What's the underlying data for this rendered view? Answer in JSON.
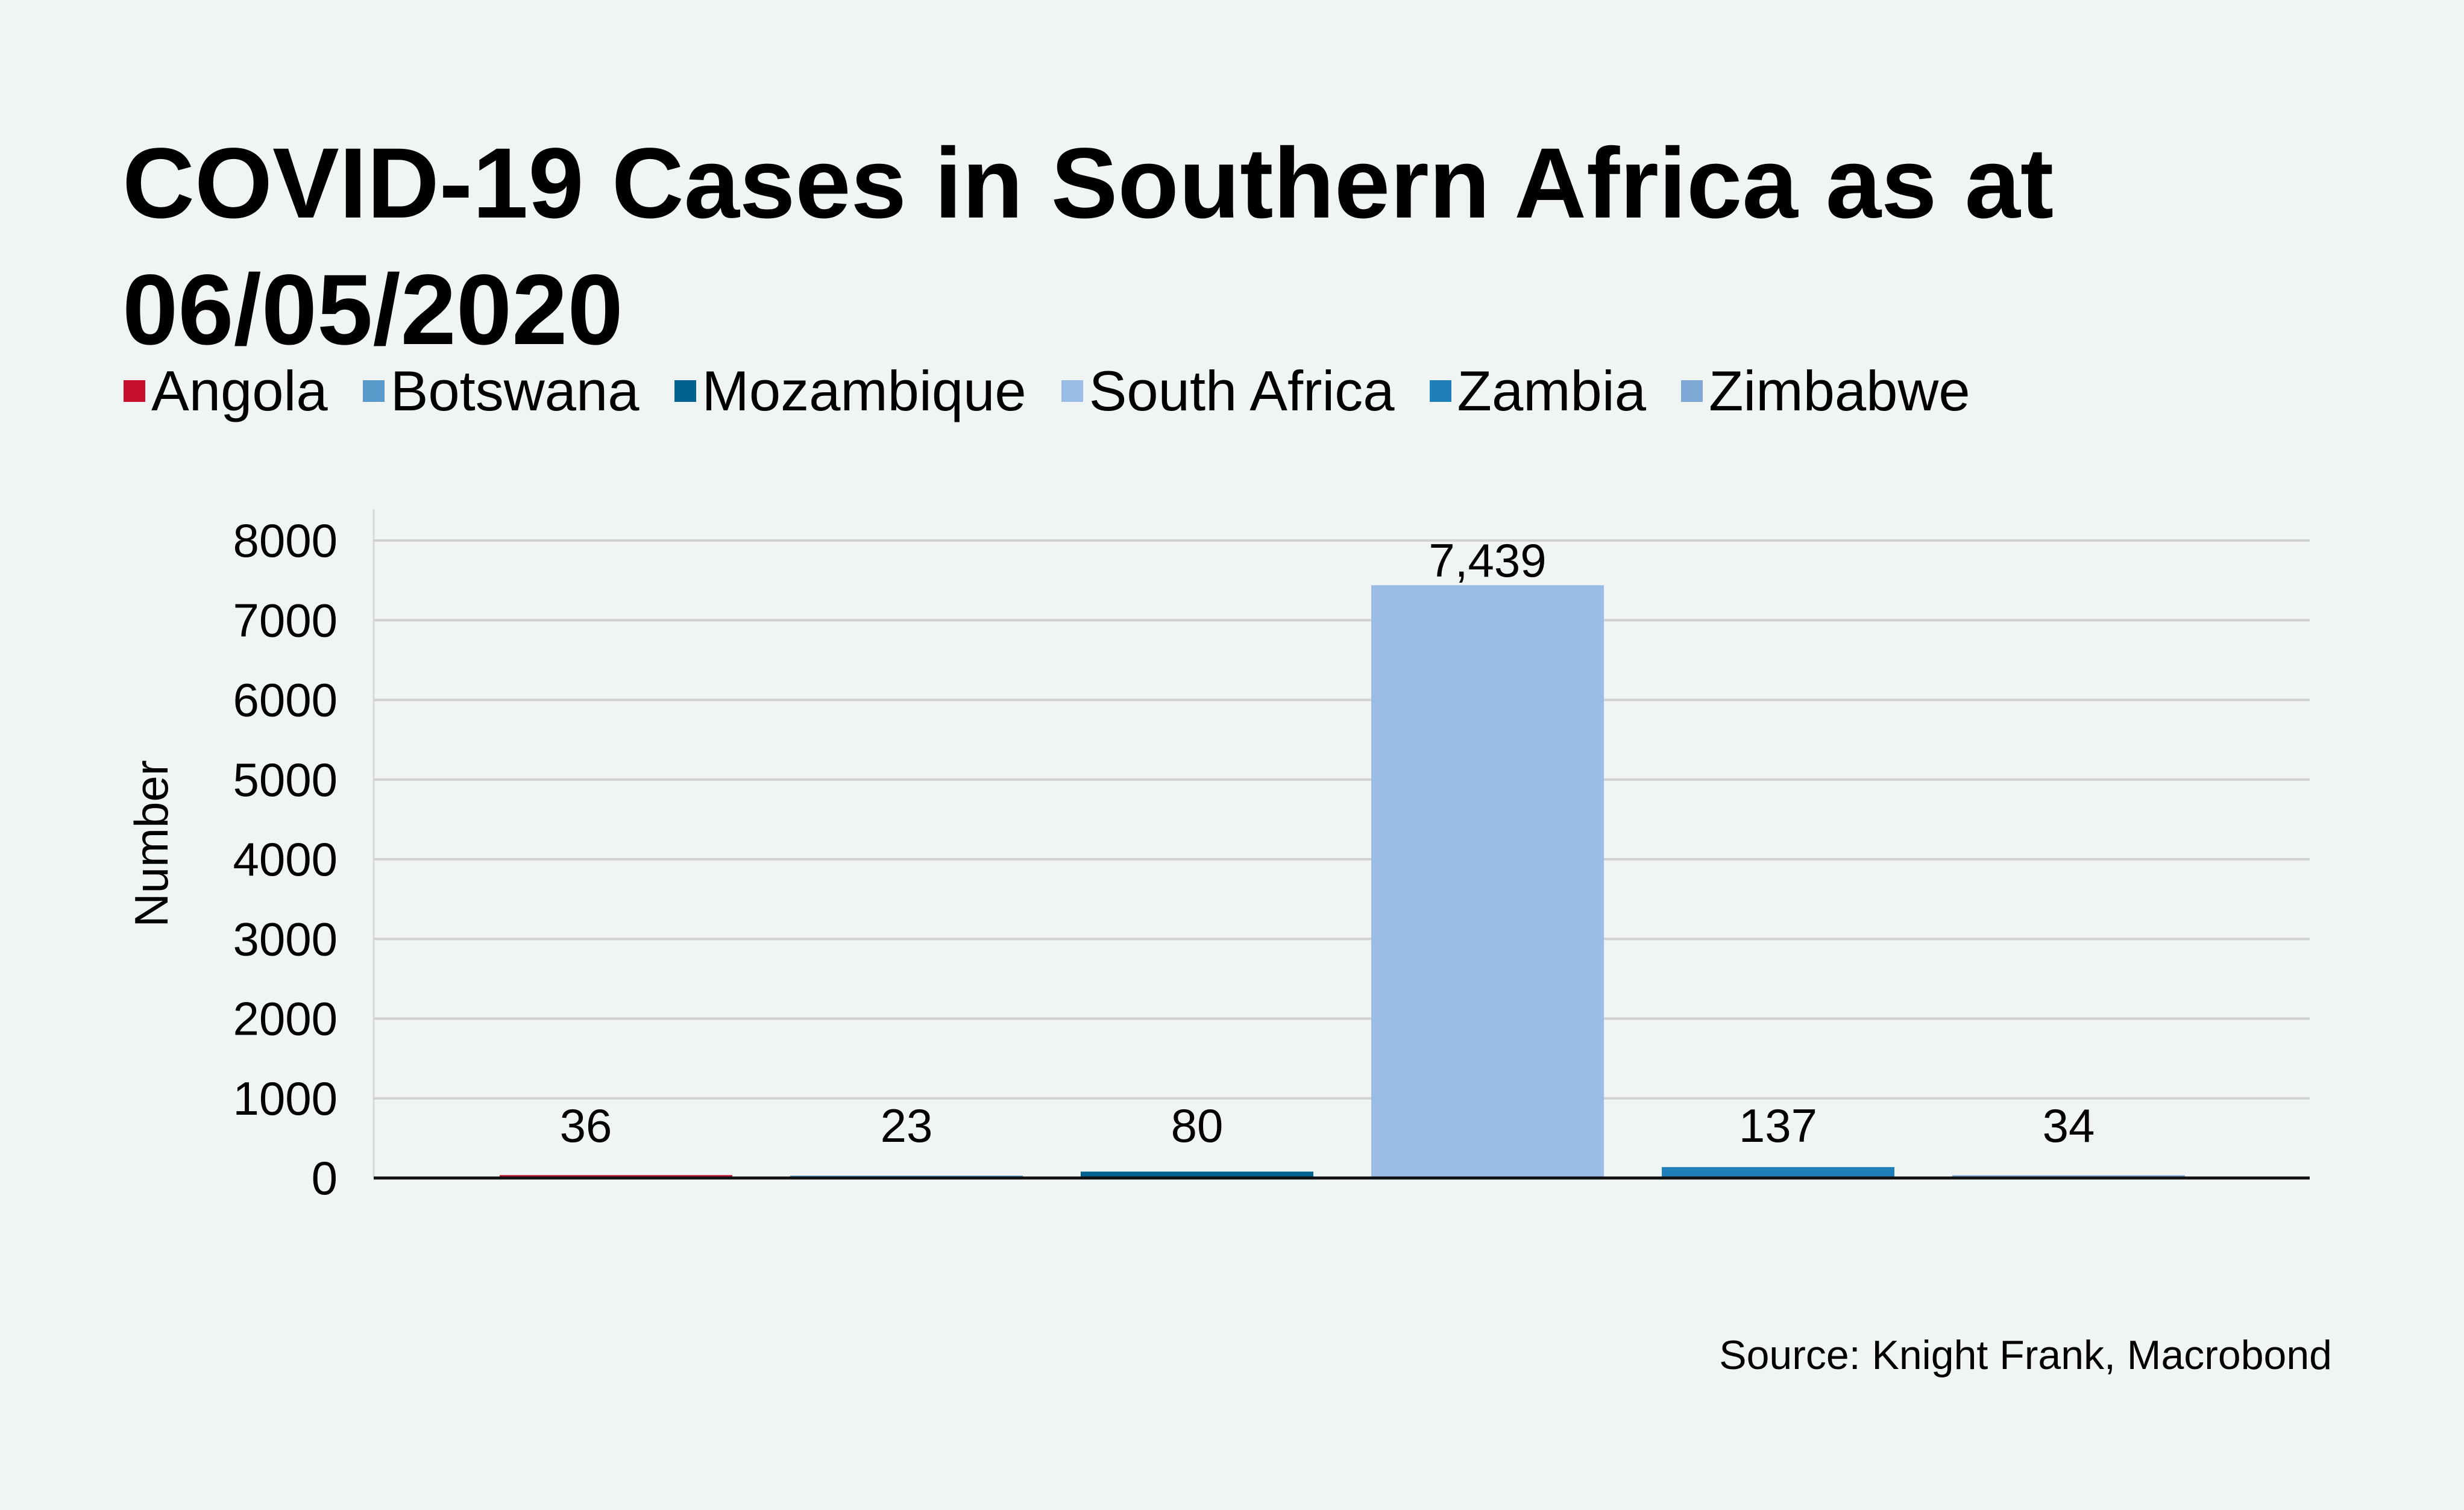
{
  "chart_data": {
    "type": "bar",
    "title": "COVID-19 Cases in Southern Africa as at 06/05/2020",
    "categories": [
      "Angola",
      "Botswana",
      "Mozambique",
      "South Africa",
      "Zambia",
      "Zimbabwe"
    ],
    "values": [
      36,
      23,
      80,
      7439,
      137,
      34
    ],
    "data_labels": [
      "36",
      "23",
      "80",
      "7,439",
      "137",
      "34"
    ],
    "colors": [
      "#c8102e",
      "#5b9bcb",
      "#00628f",
      "#9bbce6",
      "#1f7fb8",
      "#7ea8d6"
    ],
    "xlabel": "",
    "ylabel": "Number",
    "ylim": [
      0,
      8000
    ],
    "yticks": [
      "0",
      "1000",
      "2000",
      "3000",
      "4000",
      "5000",
      "6000",
      "7000",
      "8000"
    ],
    "grid": true,
    "legend_position": "top-left"
  },
  "source": "Source: Knight Frank, Macrobond"
}
